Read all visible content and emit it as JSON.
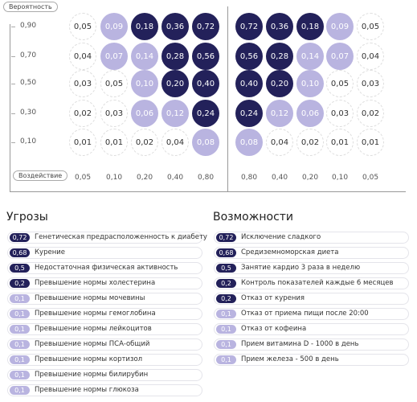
{
  "matrix": {
    "probability_button": "Вероятность",
    "impact_button": "Воздействие",
    "y_labels": [
      "0,90",
      "0,70",
      "0,50",
      "0,30",
      "0,10"
    ],
    "threat_x_labels": [
      "0,05",
      "0,10",
      "0,20",
      "0,40",
      "0,80"
    ],
    "opportunity_x_labels": [
      "0,80",
      "0,40",
      "0,20",
      "0,10",
      "0,05"
    ],
    "threat_cells": [
      [
        "0,05",
        "0,09",
        "0,18",
        "0,36",
        "0,72"
      ],
      [
        "0,04",
        "0,07",
        "0,14",
        "0,28",
        "0,56"
      ],
      [
        "0,03",
        "0,05",
        "0,10",
        "0,20",
        "0,40"
      ],
      [
        "0,02",
        "0,03",
        "0,06",
        "0,12",
        "0,24"
      ],
      [
        "0,01",
        "0,01",
        "0,02",
        "0,04",
        "0,08"
      ]
    ],
    "opportunity_cells": [
      [
        "0,72",
        "0,36",
        "0,18",
        "0,09",
        "0,05"
      ],
      [
        "0,56",
        "0,28",
        "0,14",
        "0,07",
        "0,04"
      ],
      [
        "0,40",
        "0,20",
        "0,10",
        "0,05",
        "0,03"
      ],
      [
        "0,24",
        "0,12",
        "0,06",
        "0,03",
        "0,02"
      ],
      [
        "0,08",
        "0,04",
        "0,02",
        "0,01",
        "0,01"
      ]
    ]
  },
  "threats": {
    "title": "Угрозы",
    "items": [
      {
        "value": "0,72",
        "text": "Генетическая предрасположенность к диабету"
      },
      {
        "value": "0,68",
        "text": "Курение"
      },
      {
        "value": "0,5",
        "text": "Недостаточная физическая активность"
      },
      {
        "value": "0,2",
        "text": "Превышение нормы холестерина"
      },
      {
        "value": "0,1",
        "text": "Превышение нормы мочевины"
      },
      {
        "value": "0,1",
        "text": "Превышение нормы гемоглобина"
      },
      {
        "value": "0,1",
        "text": "Превышение нормы лейкоцитов"
      },
      {
        "value": "0,1",
        "text": "Превышение нормы ПСА-общий"
      },
      {
        "value": "0,1",
        "text": "Превышение нормы кортизол"
      },
      {
        "value": "0,1",
        "text": "Превышение нормы билирубин"
      },
      {
        "value": "0,1",
        "text": "Превышение нормы глюкоза"
      }
    ]
  },
  "opportunities": {
    "title": "Возможности",
    "items": [
      {
        "value": "0,72",
        "text": "Исключение сладкого"
      },
      {
        "value": "0,68",
        "text": "Средиземноморская диета"
      },
      {
        "value": "0,5",
        "text": "Занятие кардио 3 раза в неделю"
      },
      {
        "value": "0,2",
        "text": "Контроль показателей каждые 6 месяцев"
      },
      {
        "value": "0,2",
        "text": "Отказ от курения"
      },
      {
        "value": "0,1",
        "text": "Отказ от приема пищи после 20:00"
      },
      {
        "value": "0,1",
        "text": "Отказ от кофеина"
      },
      {
        "value": "0,1",
        "text": "Прием витамина D - 1000 в день"
      },
      {
        "value": "0,1",
        "text": "Прием железа - 500 в день"
      }
    ]
  }
}
